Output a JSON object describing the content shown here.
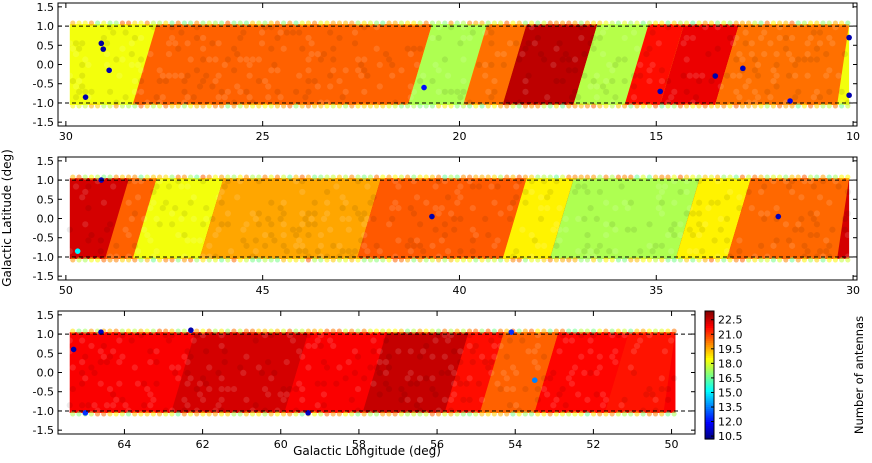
{
  "chart_data": [
    {
      "type": "heatmap",
      "panel": "top",
      "x_ticks": [
        30,
        25,
        20,
        15,
        10
      ],
      "y_ticks": [
        "1.5",
        "1.0",
        "0.5",
        "0.0",
        "-0.5",
        "-1.0",
        "-1.5"
      ],
      "xlim": [
        30.2,
        9.9
      ],
      "ylim": [
        -1.6,
        1.6
      ],
      "dashed_lines_y": [
        1.0,
        -1.0
      ],
      "coverage_l": [
        29.9,
        10.1
      ],
      "stripes": [
        {
          "l_start": 29.9,
          "l_end": 28.0,
          "value": 18.3
        },
        {
          "l_start": 28.0,
          "l_end": 21.0,
          "value": 20.5
        },
        {
          "l_start": 21.0,
          "l_end": 19.6,
          "value": 17.4
        },
        {
          "l_start": 19.6,
          "l_end": 18.6,
          "value": 20.3
        },
        {
          "l_start": 18.6,
          "l_end": 16.8,
          "value": 22.6
        },
        {
          "l_start": 16.8,
          "l_end": 15.5,
          "value": 17.5
        },
        {
          "l_start": 15.5,
          "l_end": 14.6,
          "value": 21.6
        },
        {
          "l_start": 14.6,
          "l_end": 13.2,
          "value": 22.0
        },
        {
          "l_start": 13.2,
          "l_end": 10.1,
          "value": 20.3
        }
      ],
      "outliers": [
        {
          "l": 29.1,
          "b": 0.55,
          "value": 10.6
        },
        {
          "l": 29.05,
          "b": 0.4,
          "value": 10.6
        },
        {
          "l": 28.9,
          "b": -0.15,
          "value": 10.8
        },
        {
          "l": 29.5,
          "b": -0.85,
          "value": 10.8
        },
        {
          "l": 20.9,
          "b": -0.6,
          "value": 12.0
        },
        {
          "l": 14.9,
          "b": -0.7,
          "value": 11.0
        },
        {
          "l": 13.5,
          "b": -0.3,
          "value": 10.8
        },
        {
          "l": 12.8,
          "b": -0.1,
          "value": 11.0
        },
        {
          "l": 11.6,
          "b": -0.95,
          "value": 11.5
        },
        {
          "l": 10.1,
          "b": -0.8,
          "value": 10.8
        },
        {
          "l": 10.1,
          "b": 0.7,
          "value": 10.8
        }
      ]
    },
    {
      "type": "heatmap",
      "panel": "middle",
      "ylabel": "Galactic Latitude (deg)",
      "x_ticks": [
        50,
        45,
        40,
        35,
        30
      ],
      "y_ticks": [
        "1.5",
        "1.0",
        "0.5",
        "0.0",
        "-0.5",
        "-1.0",
        "-1.5"
      ],
      "xlim": [
        50.2,
        29.9
      ],
      "ylim": [
        -1.6,
        1.6
      ],
      "dashed_lines_y": [
        1.0,
        -1.0
      ],
      "coverage_l": [
        49.9,
        30.1
      ],
      "stripes": [
        {
          "l_start": 49.9,
          "l_end": 48.7,
          "value": 22.3
        },
        {
          "l_start": 48.7,
          "l_end": 48.0,
          "value": 20.5
        },
        {
          "l_start": 48.0,
          "l_end": 46.3,
          "value": 18.3
        },
        {
          "l_start": 46.3,
          "l_end": 42.3,
          "value": 19.6
        },
        {
          "l_start": 42.3,
          "l_end": 38.6,
          "value": 20.6
        },
        {
          "l_start": 38.6,
          "l_end": 37.4,
          "value": 18.6
        },
        {
          "l_start": 37.4,
          "l_end": 34.2,
          "value": 17.4
        },
        {
          "l_start": 34.2,
          "l_end": 32.9,
          "value": 18.6
        },
        {
          "l_start": 32.9,
          "l_end": 30.1,
          "value": 20.4
        }
      ],
      "outliers": [
        {
          "l": 49.7,
          "b": -0.85,
          "value": 15.0
        },
        {
          "l": 49.1,
          "b": 1.0,
          "value": 11.0
        },
        {
          "l": 40.7,
          "b": 0.05,
          "value": 10.8
        },
        {
          "l": 31.9,
          "b": 0.05,
          "value": 11.0
        }
      ]
    },
    {
      "type": "heatmap",
      "panel": "bottom",
      "xlabel": "Galactic Longitude (deg)",
      "x_ticks": [
        64,
        62,
        60,
        58,
        56,
        54,
        52,
        50
      ],
      "y_ticks": [
        "1.5",
        "1.0",
        "0.5",
        "0.0",
        "-0.5",
        "-1.0",
        "-1.5"
      ],
      "xlim": [
        65.7,
        49.4
      ],
      "ylim": [
        -1.6,
        1.6
      ],
      "dashed_lines_y": [
        1.0,
        -1.0
      ],
      "coverage_l": [
        65.4,
        49.9
      ],
      "stripes": [
        {
          "l_start": 65.4,
          "l_end": 62.5,
          "value": 21.8
        },
        {
          "l_start": 62.5,
          "l_end": 59.6,
          "value": 22.3
        },
        {
          "l_start": 59.6,
          "l_end": 57.6,
          "value": 21.8
        },
        {
          "l_start": 57.6,
          "l_end": 55.5,
          "value": 22.5
        },
        {
          "l_start": 55.5,
          "l_end": 54.6,
          "value": 21.6
        },
        {
          "l_start": 54.6,
          "l_end": 53.2,
          "value": 20.5
        },
        {
          "l_start": 53.2,
          "l_end": 51.4,
          "value": 21.7
        },
        {
          "l_start": 51.4,
          "l_end": 49.9,
          "value": 21.5
        }
      ],
      "outliers": [
        {
          "l": 65.3,
          "b": 0.6,
          "value": 10.8
        },
        {
          "l": 65.0,
          "b": -1.05,
          "value": 12.5
        },
        {
          "l": 64.6,
          "b": 1.05,
          "value": 11.0
        },
        {
          "l": 62.3,
          "b": 1.1,
          "value": 10.8
        },
        {
          "l": 59.3,
          "b": -1.05,
          "value": 11.0
        },
        {
          "l": 54.1,
          "b": 1.05,
          "value": 12.5
        },
        {
          "l": 53.5,
          "b": -0.2,
          "value": 13.5
        }
      ]
    },
    {
      "type": "colorbar",
      "label": "Number of antennas",
      "range": [
        10.2,
        23.4
      ],
      "ticks": [
        "22.5",
        "21.0",
        "19.5",
        "18.0",
        "16.5",
        "15.0",
        "13.5",
        "12.0",
        "10.5"
      ],
      "colormap": "jet"
    }
  ]
}
